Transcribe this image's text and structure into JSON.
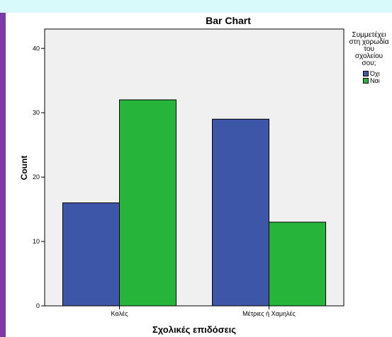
{
  "chart_data": {
    "type": "bar",
    "title": "Bar Chart",
    "xlabel": "Σχολικές επιδόσεις",
    "ylabel": "Count",
    "categories": [
      "Καλές",
      "Μέτριες ή Χαμηλές"
    ],
    "series": [
      {
        "name": "Όχι",
        "values": [
          16,
          29
        ],
        "color": "#3d56a8"
      },
      {
        "name": "Ναι",
        "values": [
          32,
          13
        ],
        "color": "#27b43a"
      }
    ],
    "ylim": [
      0,
      43
    ],
    "yticks": [
      "0",
      "10",
      "20",
      "30",
      "40"
    ],
    "legend": {
      "title": "Συμμετέχει\nστη χορωδία\nτου\nσχολείου\nσου;",
      "placement": "right"
    },
    "plot_background": "#f0f0f0",
    "grid": false
  }
}
